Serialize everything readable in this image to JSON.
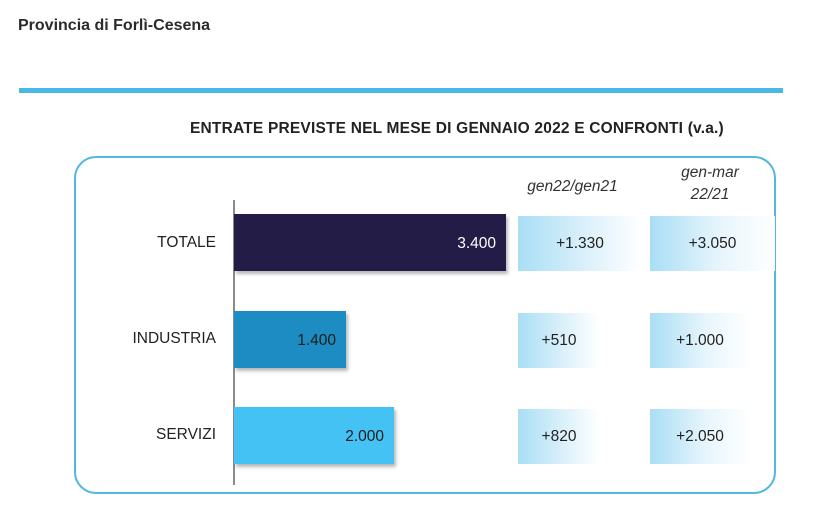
{
  "header": {
    "province": "Provincia di Forlì-Cesena"
  },
  "chart_data": {
    "type": "bar",
    "orientation": "horizontal",
    "title": "ENTRATE PREVISTE NEL MESE DI  GENNAIO 2022 E CONFRONTI (v.a.)",
    "categories": [
      "TOTALE",
      "INDUSTRIA",
      "SERVIZI"
    ],
    "values": [
      3400,
      1400,
      2000
    ],
    "value_labels": [
      "3.400",
      "1.400",
      "2.000"
    ],
    "bar_colors": [
      "#221c46",
      "#1b8cc2",
      "#45c2f4"
    ],
    "xlim": [
      0,
      3400
    ],
    "grid": false,
    "comparisons": [
      {
        "header_line1": "gen22/gen21",
        "header_line2": "",
        "values": [
          1330,
          510,
          820
        ],
        "labels": [
          "+1.330",
          "+510",
          "+820"
        ]
      },
      {
        "header_line1": "gen-mar",
        "header_line2": "22/21",
        "values": [
          3050,
          1000,
          2050
        ],
        "labels": [
          "+3.050",
          "+1.000",
          "+2.050"
        ]
      }
    ]
  }
}
